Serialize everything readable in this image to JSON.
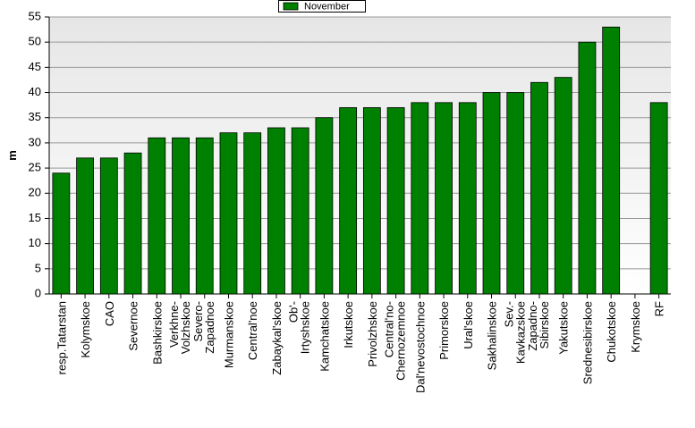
{
  "chart_data": {
    "type": "bar",
    "y_label": "m",
    "categories": [
      "resp.Tatarstan",
      "Kolymskoe",
      "CAO",
      "Severnoe",
      "Bashkirskoe",
      "Verkhne- Volzhskoe",
      "Severo- Zapadnoe",
      "Murmanskoe",
      "Central'noe",
      "Zabaykal'skoe",
      "Ob'- Irtyshskoe",
      "Kamchatskoe",
      "Irkutskoe",
      "Privolzhskoe",
      "Central'no- Chernozemnoe",
      "Dal'nevostochnoe",
      "Primorskoe",
      "Ural'skoe",
      "Sakhalinskoe",
      "Sev.- Kavkazskoe",
      "Zapadno- Sibirskoe",
      "Yakutskoe",
      "Srednesibirskoe",
      "Chukotskoe",
      "Krymskoe",
      "RF"
    ],
    "series": [
      {
        "name": "November",
        "color": "#008000",
        "values": [
          24,
          27,
          27,
          28,
          31,
          31,
          31,
          32,
          32,
          33,
          33,
          35,
          37,
          37,
          37,
          38,
          38,
          38,
          40,
          40,
          42,
          43,
          50,
          53,
          null,
          38
        ]
      }
    ],
    "ylim": [
      0,
      55
    ],
    "yticks": [
      0,
      5,
      10,
      15,
      20,
      25,
      30,
      35,
      40,
      45,
      50,
      55
    ],
    "grid": true
  }
}
